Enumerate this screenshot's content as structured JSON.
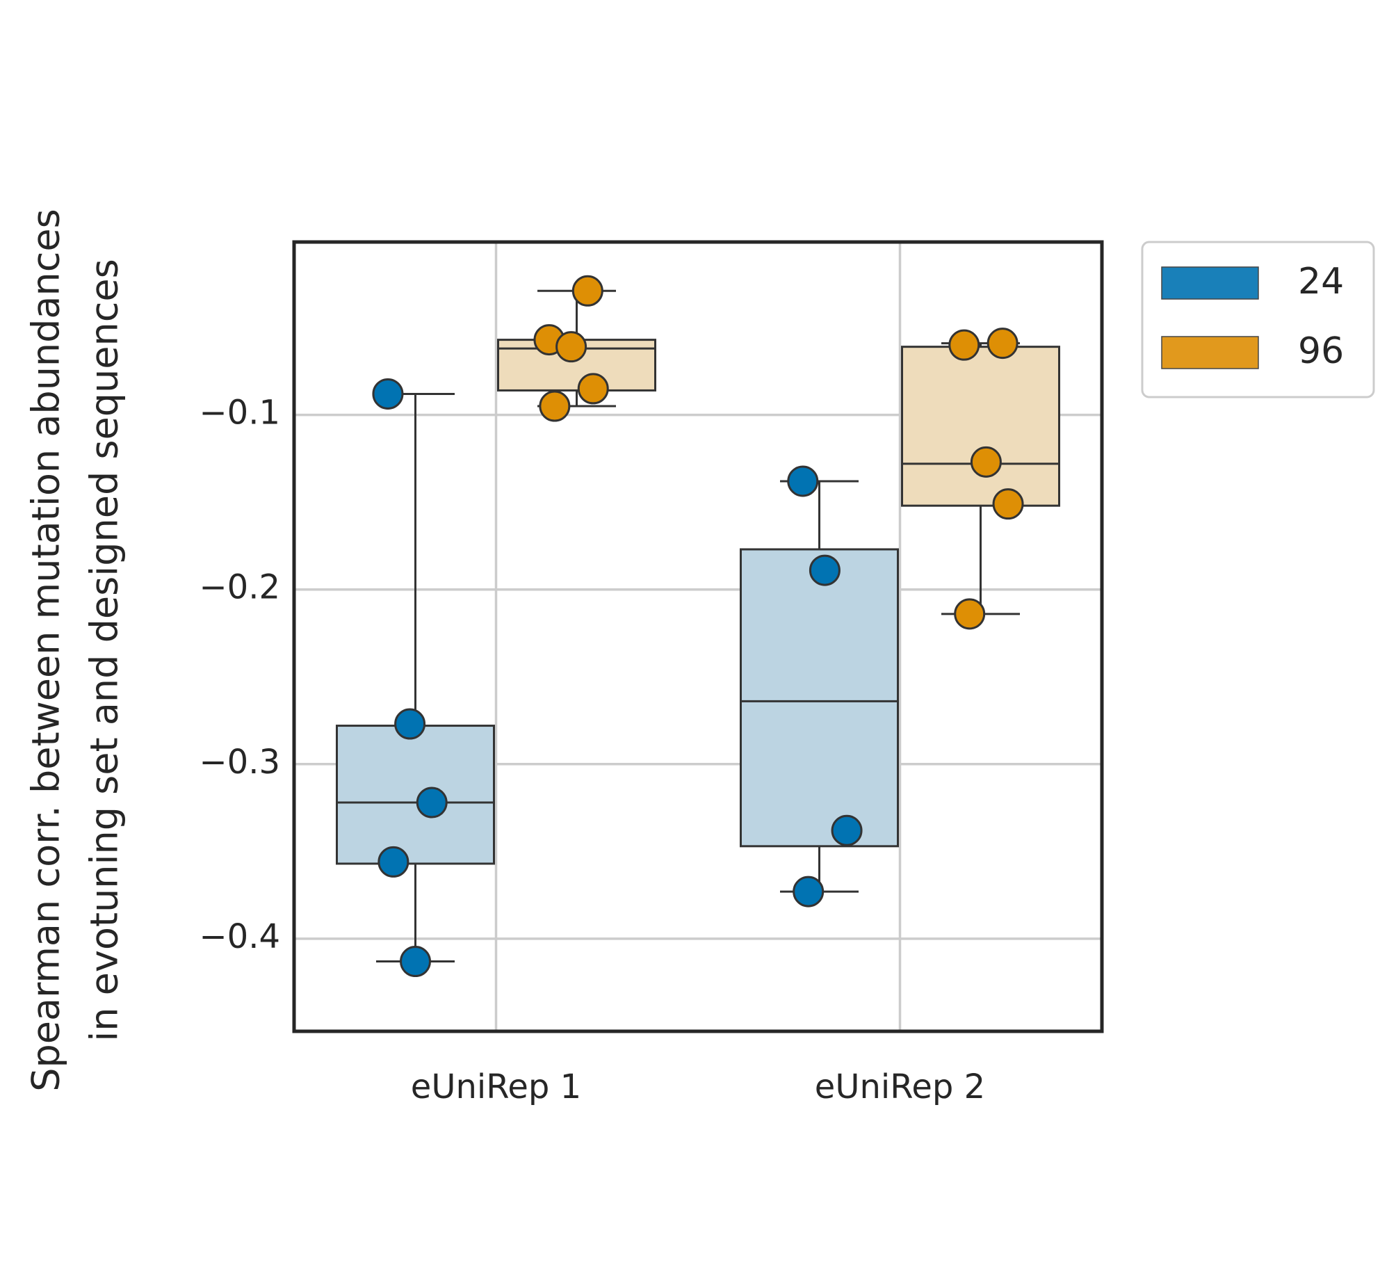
{
  "chart_data": {
    "type": "box",
    "ylabel": [
      "Spearman corr. between mutation abundances",
      "in evotuning set and designed sequences"
    ],
    "categories": [
      "eUniRep 1",
      "eUniRep 2"
    ],
    "series": [
      {
        "name": "24",
        "color": "#0173b2",
        "box_color": "#bcd4e2",
        "values": [
          [
            -0.088,
            -0.277,
            -0.322,
            -0.356,
            -0.413
          ],
          [
            -0.138,
            -0.189,
            -0.338,
            -0.373
          ]
        ],
        "boxes": [
          {
            "whisker_low": -0.413,
            "q1": -0.357,
            "median": -0.322,
            "q3": -0.278,
            "whisker_high": -0.088
          },
          {
            "whisker_low": -0.373,
            "q1": -0.347,
            "median": -0.264,
            "q3": -0.177,
            "whisker_high": -0.138
          }
        ]
      },
      {
        "name": "96",
        "color": "#de8f05",
        "box_color": "#eedcbb",
        "values": [
          [
            -0.029,
            -0.057,
            -0.061,
            -0.085,
            -0.095
          ],
          [
            -0.059,
            -0.06,
            -0.127,
            -0.151,
            -0.214
          ]
        ],
        "boxes": [
          {
            "whisker_low": -0.095,
            "q1": -0.086,
            "median": -0.062,
            "q3": -0.057,
            "whisker_high": -0.029
          },
          {
            "whisker_low": -0.214,
            "q1": -0.152,
            "median": -0.128,
            "q3": -0.061,
            "whisker_high": -0.059
          }
        ]
      }
    ],
    "ylim": [
      -0.453,
      -0.001
    ],
    "yticks": [
      {
        "value": -0.4,
        "label": "−0.4"
      },
      {
        "value": -0.3,
        "label": "−0.3"
      },
      {
        "value": -0.2,
        "label": "−0.2"
      },
      {
        "value": -0.1,
        "label": "−0.1"
      }
    ],
    "grid": true,
    "legend": "outside-upper-right"
  }
}
